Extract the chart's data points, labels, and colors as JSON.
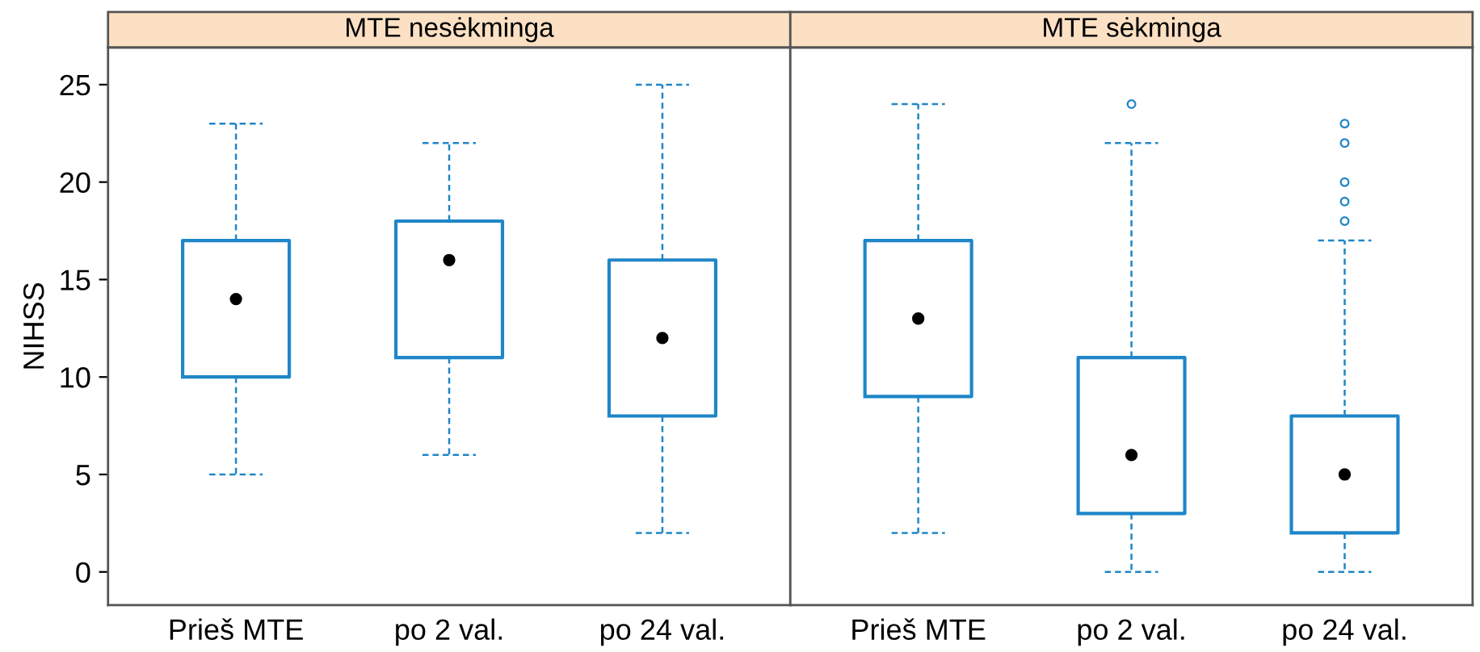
{
  "chart_data": [
    {
      "type": "box",
      "title": "MTE nesėkminga",
      "ylabel": "NIHSS",
      "categories": [
        "Prieš MTE",
        "po 2 val.",
        "po 24 val."
      ],
      "color": "#1f86c8",
      "ylim": [
        -1.7,
        26.9
      ],
      "yticks": [
        0,
        5,
        10,
        15,
        20,
        25
      ],
      "grid": false,
      "boxes": [
        {
          "low": 5,
          "q1": 10,
          "median": 14,
          "q3": 17,
          "high": 23
        },
        {
          "low": 6,
          "q1": 11,
          "median": 16,
          "q3": 18,
          "high": 22
        },
        {
          "low": 2,
          "q1": 8,
          "median": 12,
          "q3": 16,
          "high": 25
        }
      ]
    },
    {
      "type": "box",
      "title": "MTE sėkminga",
      "categories": [
        "Prieš MTE",
        "po 2 val.",
        "po 24 val."
      ],
      "color": "#1f86c8",
      "ylim": [
        -1.7,
        26.9
      ],
      "yticks": [
        0,
        5,
        10,
        15,
        20,
        25
      ],
      "tick_labels": "x",
      "grid": false,
      "boxes": [
        {
          "low": 2,
          "q1": 9,
          "median": 13,
          "q3": 17,
          "high": 24
        },
        {
          "low": 0,
          "q1": 3,
          "median": 6,
          "q3": 11,
          "high": 22,
          "outliers": [
            24
          ]
        },
        {
          "low": 0,
          "q1": 2,
          "median": 5,
          "q3": 8,
          "high": 17,
          "outliers": [
            18,
            19,
            20,
            22,
            23
          ]
        }
      ]
    }
  ]
}
